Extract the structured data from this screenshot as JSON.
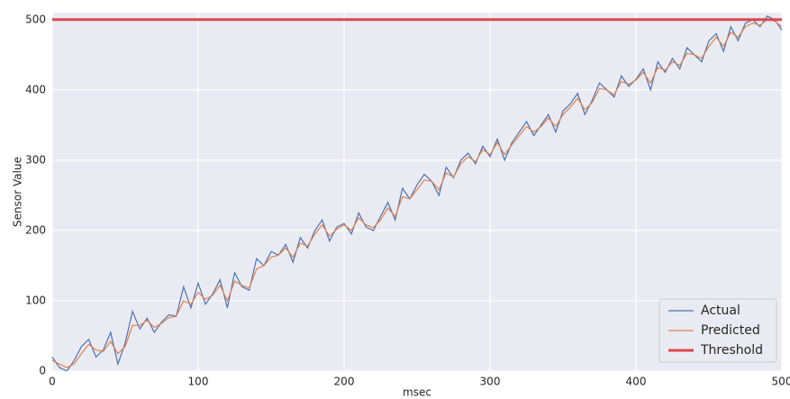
{
  "chart_data": {
    "type": "line",
    "xlabel": "msec",
    "ylabel": "Sensor Value",
    "x": [
      0,
      5,
      10,
      15,
      20,
      25,
      30,
      35,
      40,
      45,
      50,
      55,
      60,
      65,
      70,
      75,
      80,
      85,
      90,
      95,
      100,
      105,
      110,
      115,
      120,
      125,
      130,
      135,
      140,
      145,
      150,
      155,
      160,
      165,
      170,
      175,
      180,
      185,
      190,
      195,
      200,
      205,
      210,
      215,
      220,
      225,
      230,
      235,
      240,
      245,
      250,
      255,
      260,
      265,
      270,
      275,
      280,
      285,
      290,
      295,
      300,
      305,
      310,
      315,
      320,
      325,
      330,
      335,
      340,
      345,
      350,
      355,
      360,
      365,
      370,
      375,
      380,
      385,
      390,
      395,
      400,
      405,
      410,
      415,
      420,
      425,
      430,
      435,
      440,
      445,
      450,
      455,
      460,
      465,
      470,
      475,
      480,
      485,
      490,
      495,
      500
    ],
    "series": [
      {
        "name": "Actual",
        "color": "#4c72b0",
        "values": [
          20,
          5,
          0,
          15,
          35,
          45,
          20,
          30,
          55,
          10,
          40,
          85,
          60,
          75,
          55,
          70,
          80,
          78,
          120,
          90,
          125,
          95,
          110,
          130,
          90,
          140,
          120,
          115,
          160,
          150,
          170,
          165,
          180,
          155,
          190,
          175,
          200,
          215,
          185,
          205,
          210,
          195,
          225,
          205,
          200,
          220,
          240,
          215,
          260,
          245,
          265,
          280,
          270,
          250,
          290,
          275,
          300,
          310,
          295,
          320,
          305,
          330,
          300,
          325,
          340,
          355,
          335,
          350,
          365,
          340,
          370,
          380,
          395,
          365,
          385,
          410,
          400,
          390,
          420,
          405,
          415,
          430,
          400,
          440,
          425,
          445,
          430,
          460,
          450,
          440,
          470,
          480,
          455,
          490,
          470,
          495,
          500,
          490,
          505,
          500,
          485
        ]
      },
      {
        "name": "Predicted",
        "color": "#dd8452",
        "values": [
          15,
          10,
          5,
          10,
          25,
          38,
          30,
          28,
          42,
          25,
          35,
          65,
          65,
          72,
          62,
          68,
          76,
          78,
          100,
          95,
          112,
          102,
          108,
          122,
          100,
          128,
          122,
          118,
          145,
          150,
          162,
          165,
          175,
          162,
          182,
          178,
          195,
          208,
          192,
          202,
          208,
          200,
          218,
          208,
          204,
          215,
          232,
          220,
          248,
          245,
          258,
          272,
          270,
          258,
          282,
          276,
          295,
          305,
          298,
          315,
          308,
          325,
          308,
          322,
          335,
          348,
          340,
          348,
          360,
          348,
          365,
          375,
          388,
          372,
          382,
          402,
          400,
          393,
          412,
          408,
          414,
          425,
          410,
          432,
          428,
          440,
          435,
          452,
          450,
          445,
          462,
          475,
          462,
          482,
          475,
          490,
          495,
          492,
          500,
          498,
          490
        ]
      },
      {
        "name": "Threshold",
        "color": "#d9494e",
        "x": [
          0,
          500
        ],
        "values": [
          500,
          500
        ]
      }
    ],
    "xlim": [
      0,
      500
    ],
    "ylim": [
      0,
      510
    ],
    "xticks": [
      0,
      100,
      200,
      300,
      400,
      500
    ],
    "yticks": [
      0,
      100,
      200,
      300,
      400,
      500
    ],
    "grid": true,
    "legend": "lower right"
  }
}
